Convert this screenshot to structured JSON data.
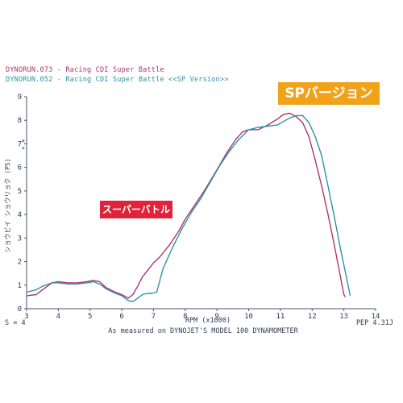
{
  "legend": [
    {
      "text": "DYNORUN.073 - Racing CDI Super Battle",
      "color": "#b0336e"
    },
    {
      "text": "DYNORUN.052 - Racing CDI Super Battle <<SP Version>>",
      "color": "#2b93a6"
    }
  ],
  "callouts": {
    "sp": {
      "text": "SPバージョン",
      "color": "#f0a21a"
    },
    "standard": {
      "text": "スーパーバトル",
      "color": "#e0233a"
    }
  },
  "footer": {
    "left": "S = 4",
    "right": "PEP 4.31J",
    "measured": "As measured on DYNOJET'S MODEL 100 DYNAMOMETER"
  },
  "chart_data": {
    "type": "line",
    "xlabel": "RPM (x1000)",
    "ylabel": "ショウビイ ショウリョク (PS)",
    "xlim": [
      3,
      14
    ],
    "ylim": [
      0,
      9
    ],
    "xticks": [
      3,
      4,
      5,
      6,
      7,
      8,
      9,
      10,
      11,
      12,
      13,
      14
    ],
    "yticks": [
      0,
      1,
      2,
      3,
      4,
      5,
      6,
      7,
      8,
      9
    ],
    "grid": false,
    "legend_position": "top-left",
    "y_marker_labels": [
      {
        "text": "×",
        "color": "#b0336e",
        "y": 7.15
      },
      {
        "text": "×",
        "color": "#2b93a6",
        "y": 6.85
      }
    ],
    "series": [
      {
        "name": "DYNORUN.073 - Racing CDI Super Battle",
        "color": "#b0336e",
        "x": [
          3.0,
          3.3,
          3.5,
          3.8,
          4.0,
          4.3,
          4.6,
          4.9,
          5.1,
          5.3,
          5.5,
          5.8,
          6.0,
          6.2,
          6.35,
          6.5,
          6.65,
          6.8,
          7.0,
          7.2,
          7.5,
          7.8,
          8.0,
          8.3,
          8.6,
          9.0,
          9.3,
          9.6,
          9.8,
          10.0,
          10.3,
          10.6,
          10.9,
          11.1,
          11.3,
          11.5,
          11.7,
          11.9,
          12.1,
          12.3,
          12.5,
          12.7,
          12.9,
          13.0,
          13.05
        ],
        "y": [
          0.55,
          0.6,
          0.8,
          1.1,
          1.15,
          1.1,
          1.1,
          1.15,
          1.2,
          1.15,
          0.9,
          0.7,
          0.6,
          0.45,
          0.6,
          0.95,
          1.35,
          1.6,
          1.95,
          2.2,
          2.7,
          3.3,
          3.8,
          4.4,
          5.0,
          5.9,
          6.6,
          7.2,
          7.5,
          7.6,
          7.6,
          7.8,
          8.05,
          8.25,
          8.3,
          8.15,
          7.9,
          7.3,
          6.3,
          5.2,
          4.0,
          2.7,
          1.3,
          0.6,
          0.5
        ]
      },
      {
        "name": "DYNORUN.052 - Racing CDI Super Battle <<SP Version>>",
        "color": "#2b93a6",
        "x": [
          3.0,
          3.3,
          3.5,
          3.8,
          4.0,
          4.3,
          4.6,
          4.9,
          5.1,
          5.3,
          5.5,
          5.8,
          6.0,
          6.2,
          6.35,
          6.5,
          6.65,
          6.8,
          6.95,
          7.1,
          7.3,
          7.6,
          7.9,
          8.2,
          8.5,
          8.8,
          9.1,
          9.4,
          9.7,
          10.0,
          10.3,
          10.6,
          10.9,
          11.1,
          11.3,
          11.5,
          11.7,
          11.9,
          12.1,
          12.3,
          12.5,
          12.7,
          12.9,
          13.1,
          13.2
        ],
        "y": [
          0.7,
          0.8,
          0.95,
          1.1,
          1.1,
          1.05,
          1.05,
          1.1,
          1.15,
          1.05,
          0.85,
          0.65,
          0.55,
          0.35,
          0.3,
          0.45,
          0.6,
          0.65,
          0.65,
          0.7,
          1.7,
          2.6,
          3.4,
          4.1,
          4.7,
          5.4,
          6.1,
          6.7,
          7.2,
          7.6,
          7.7,
          7.75,
          7.8,
          7.95,
          8.1,
          8.2,
          8.2,
          7.9,
          7.3,
          6.5,
          5.2,
          3.9,
          2.5,
          1.2,
          0.55
        ]
      }
    ]
  }
}
